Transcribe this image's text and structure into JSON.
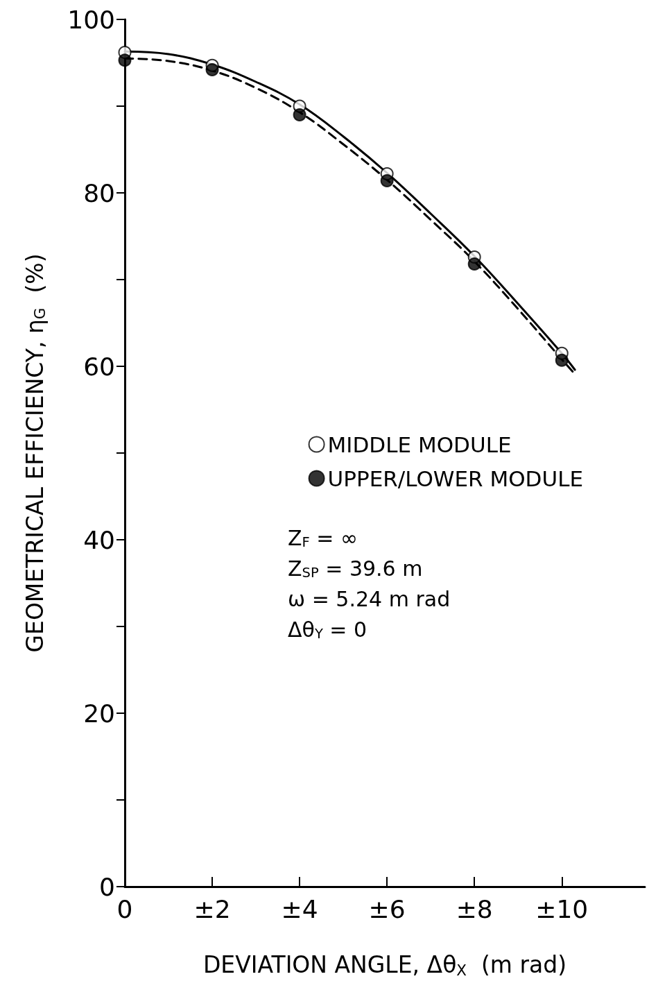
{
  "chart_data": {
    "type": "scatter",
    "xlabel": "DEVIATION ANGLE, Δθ$_{X}$  (m rad)",
    "ylabel": "GEOMETRICAL EFFICIENCY, η$_{G}$  (%)",
    "x": [
      0,
      2,
      4,
      6,
      8,
      10
    ],
    "xlim": [
      0,
      11.9
    ],
    "xticks": [
      0,
      {
        "value": 2,
        "label": "±2"
      },
      {
        "value": 4,
        "label": "±4"
      },
      {
        "value": 6,
        "label": "±6"
      },
      {
        "value": 8,
        "label": "±8"
      },
      {
        "value": 10,
        "label": "±10"
      }
    ],
    "ylim": [
      0,
      100
    ],
    "yticks": [
      0,
      {
        "value": 10,
        "label": null
      },
      20,
      {
        "value": 30,
        "label": null
      },
      40,
      {
        "value": 50,
        "label": null
      },
      60,
      {
        "value": 70,
        "label": null
      },
      80,
      {
        "value": 90,
        "label": null
      },
      100
    ],
    "grid": false,
    "legend": "right",
    "marker": "circle",
    "annotations": [
      "Z$_{F}$ = ∞",
      "Z$_{SP}$ = 39.6 m",
      "ω = 5.24 m rad",
      "Δθ$_{Y}$ = 0"
    ],
    "series": [
      {
        "name": "MIDDLE MODULE",
        "color": "#ffffff",
        "values": [
          96.2,
          94.7,
          90.0,
          82.2,
          72.6,
          61.5
        ]
      },
      {
        "name": "UPPER/LOWER MODULE",
        "color": "#000000",
        "values": [
          95.3,
          94.2,
          89.0,
          81.4,
          71.8,
          60.7
        ]
      },
      {
        "type": "line",
        "color": "#000000",
        "line_style": "solid",
        "marker": "none",
        "x": [
          0,
          1,
          2,
          3,
          4,
          5,
          6,
          7,
          8,
          9,
          10,
          10.3
        ],
        "values": [
          96.3,
          96.0,
          94.8,
          92.8,
          90.2,
          86.5,
          82.3,
          77.6,
          72.7,
          67.2,
          61.5,
          59.6
        ]
      },
      {
        "type": "line",
        "color": "#000000",
        "line_style": "dashed",
        "marker": "none",
        "x": [
          0,
          1,
          2,
          3,
          4,
          5,
          6,
          7,
          8,
          9,
          10,
          10.3
        ],
        "values": [
          95.5,
          95.2,
          94.1,
          92.1,
          89.3,
          85.6,
          81.5,
          76.9,
          72.1,
          66.6,
          60.8,
          59.1
        ]
      }
    ]
  }
}
